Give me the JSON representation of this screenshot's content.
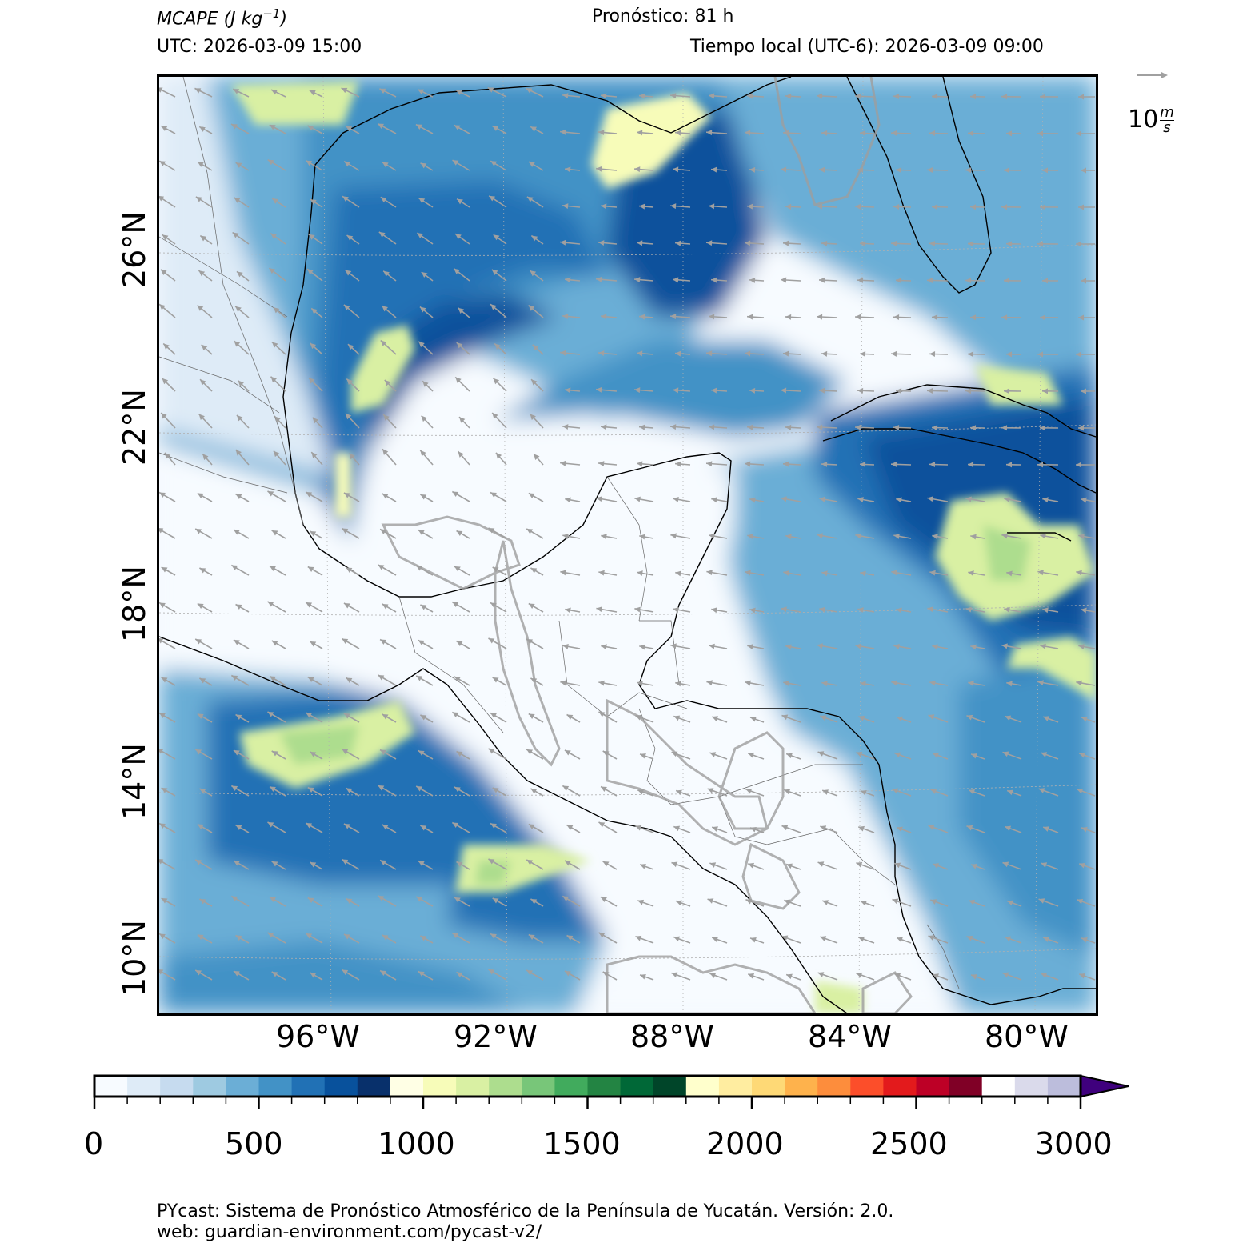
{
  "header": {
    "title_prefix": "MCAPE",
    "title_unit_open": "(J kg",
    "title_unit_exp": "−1",
    "title_unit_close": ")",
    "forecast": "Pronóstico: 81 h",
    "utc": "UTC:  2026-03-09 15:00",
    "local_time": "Tiempo local (UTC-6): 2026-03-09 09:00"
  },
  "map": {
    "variable": "MCAPE",
    "lat_labels": [
      "26°N",
      "22°N",
      "18°N",
      "14°N",
      "10°N"
    ],
    "lon_labels": [
      "96°W",
      "92°W",
      "88°W",
      "84°W",
      "80°W"
    ],
    "extent": {
      "lon": [
        -99.8,
        -78.4
      ],
      "lat": [
        8.7,
        29.5
      ]
    },
    "wind_field_direction": "from east/northeast",
    "colors": {
      "land_outline": "#000000",
      "state_borders": "#555555",
      "arrows": "#a0a0a0"
    }
  },
  "wind_key": {
    "label_value": "10",
    "label_unit_num": "m",
    "label_unit_den": "s"
  },
  "colorbar": {
    "min": 0,
    "max": 3000,
    "step": 100,
    "extend": "max",
    "ticks": [
      "0",
      "500",
      "1000",
      "1500",
      "2000",
      "2500",
      "3000"
    ],
    "colors": [
      "#f7fbff",
      "#deebf7",
      "#c6dbef",
      "#9ecae1",
      "#6baed6",
      "#4292c6",
      "#2171b5",
      "#08519c",
      "#08306b",
      "#ffffe5",
      "#f7fcb9",
      "#d9f0a3",
      "#addd8e",
      "#78c679",
      "#41ab5d",
      "#238443",
      "#006837",
      "#004529",
      "#ffffcc",
      "#ffeda0",
      "#fed976",
      "#feb24c",
      "#fd8d3c",
      "#fc4e2a",
      "#e31a1c",
      "#bd0026",
      "#800026",
      "#ffffff",
      "#dadaeb",
      "#bcbddc",
      "#9e9ac8",
      "#807dba",
      "#6a51a3",
      "#54278f",
      "#3f007d"
    ]
  },
  "footer": {
    "line1": "PYcast: Sistema de Pronóstico Atmosférico de la Península de Yucatán. Versión: 2.0.",
    "line2": "web: guardian-environment.com/pycast-v2/"
  }
}
